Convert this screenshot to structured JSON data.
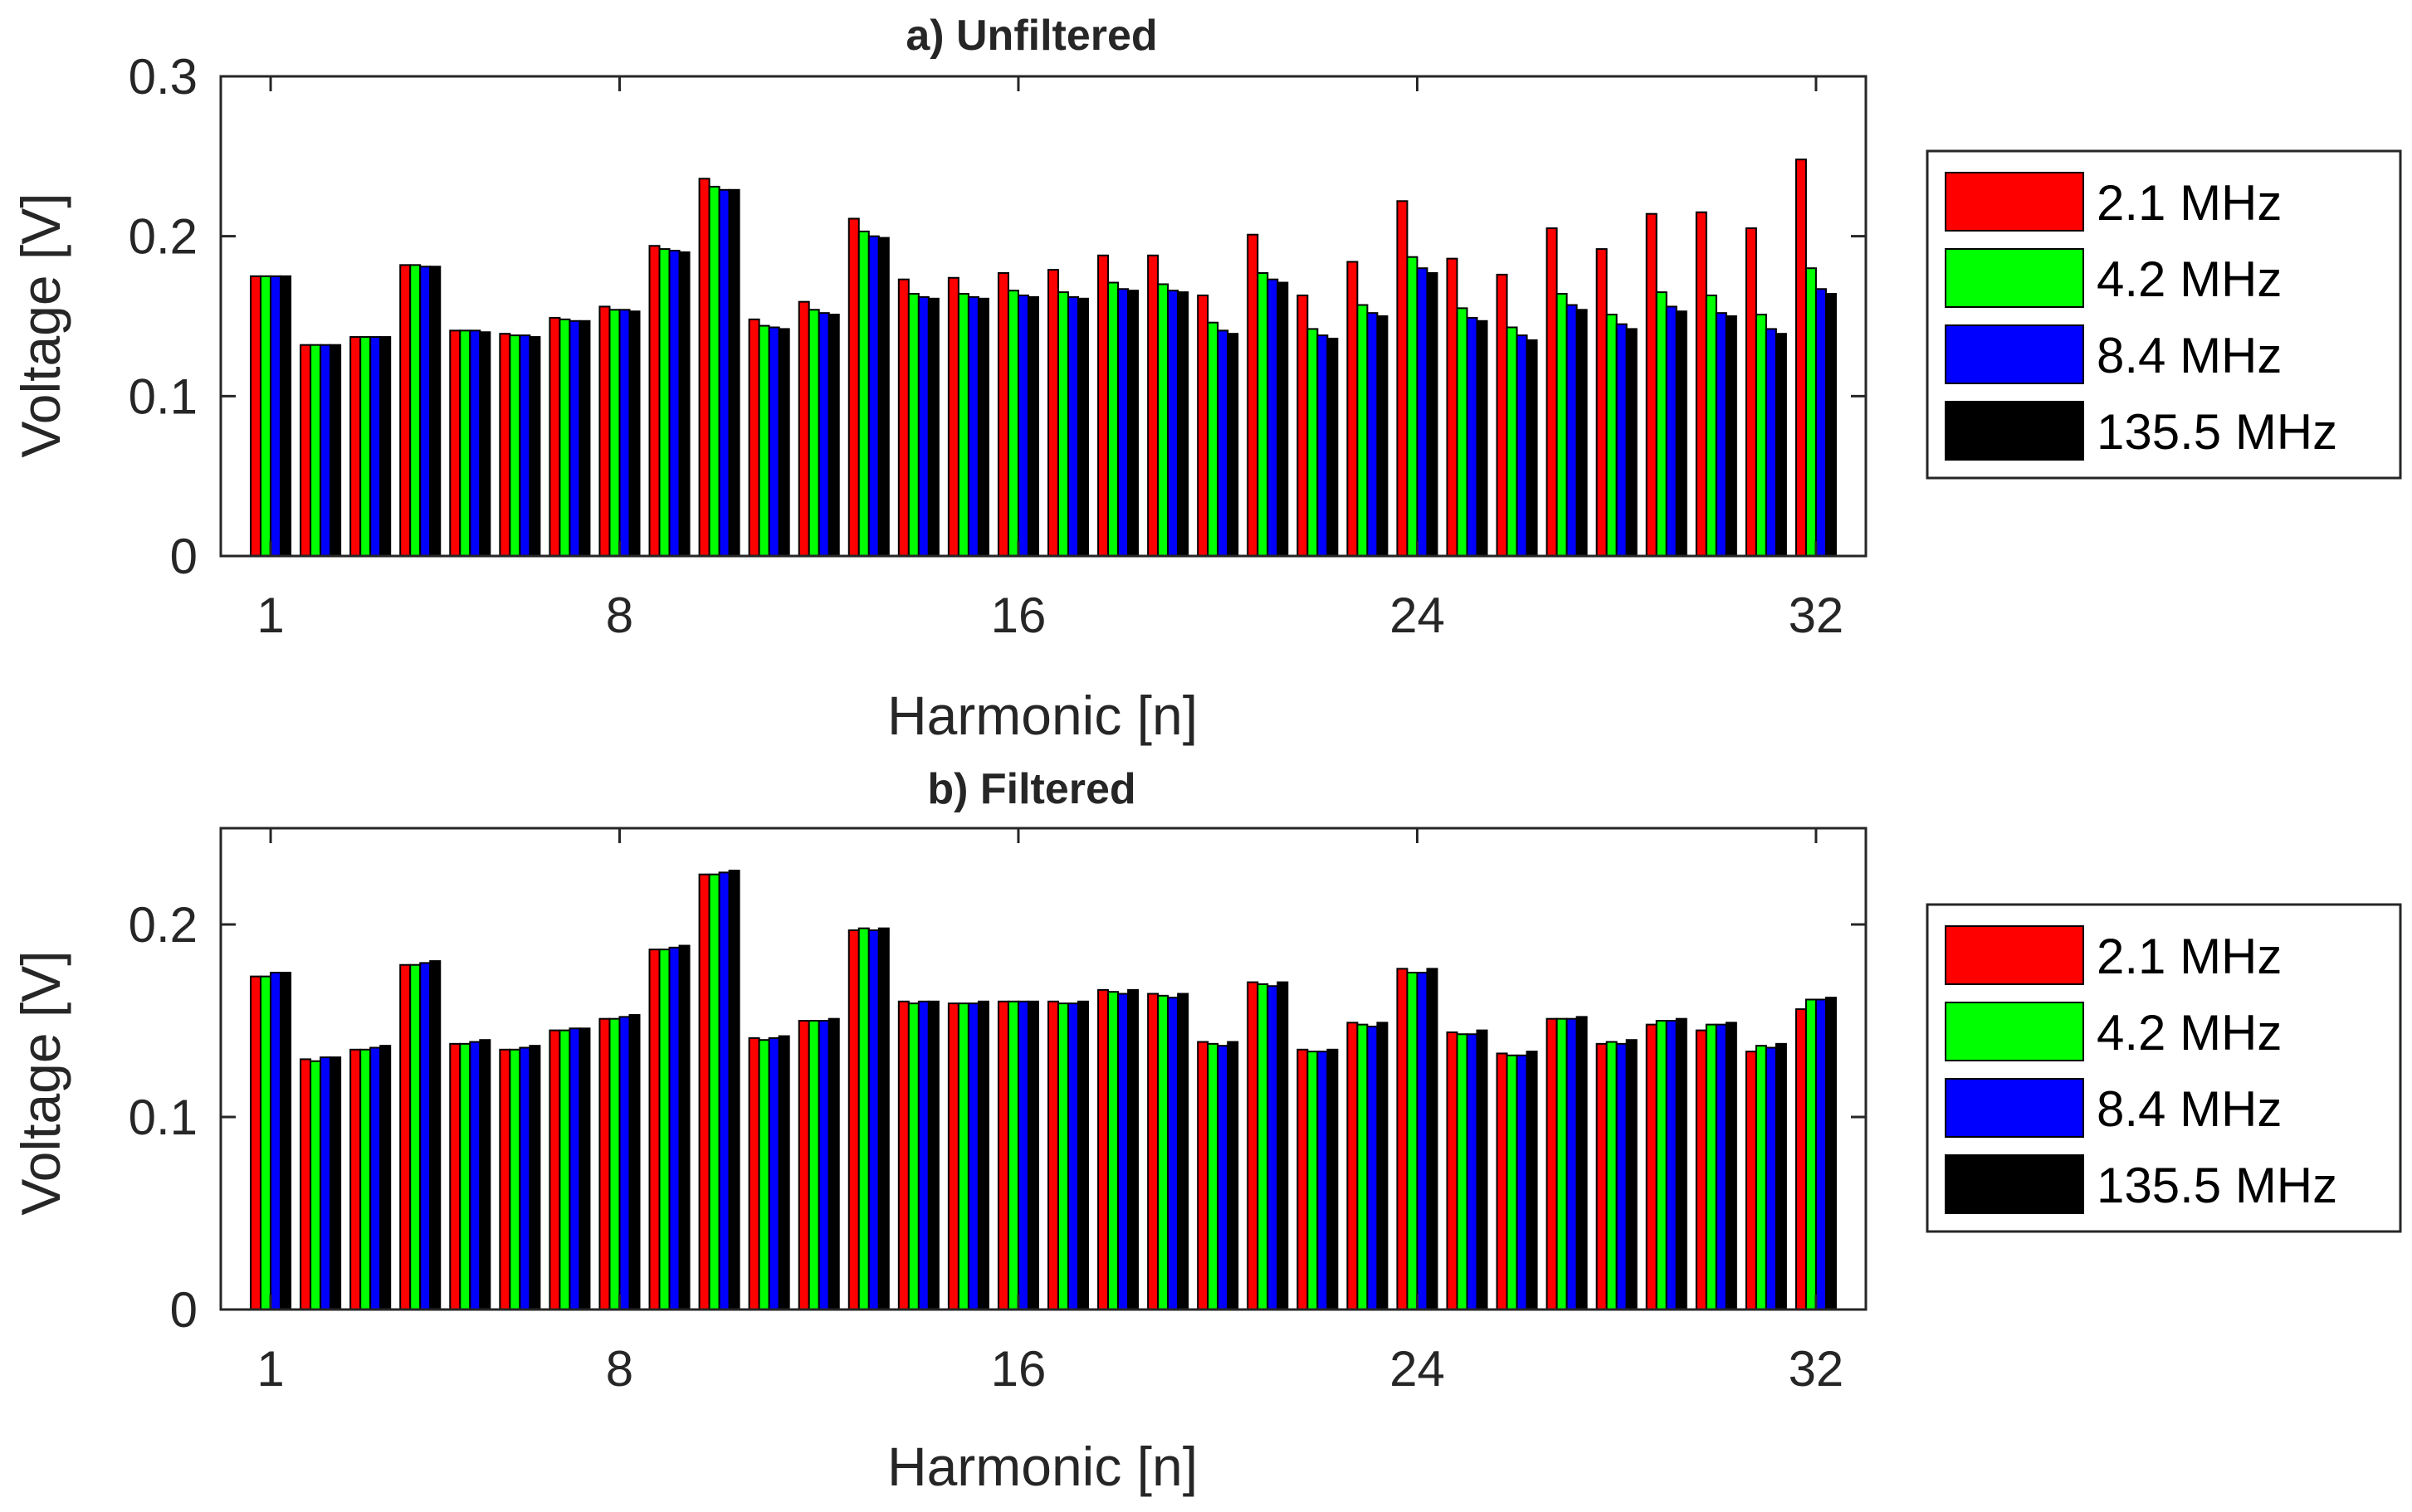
{
  "chart_data": [
    {
      "type": "bar",
      "title": "a) Unfiltered",
      "xlabel": "Harmonic [n]",
      "ylabel": "Voltage [V]",
      "xlim": [
        0,
        33
      ],
      "ylim": [
        0,
        0.3
      ],
      "xticks": [
        1,
        8,
        16,
        24,
        32
      ],
      "xtick_labels": [
        "1",
        "8",
        "16",
        "24",
        "32"
      ],
      "yticks": [
        0,
        0.1,
        0.2,
        0.3
      ],
      "ytick_labels": [
        "0",
        "0.1",
        "0.2",
        "0.3"
      ],
      "legend_position": "outside-right",
      "categories": [
        1,
        2,
        3,
        4,
        5,
        6,
        7,
        8,
        9,
        10,
        11,
        12,
        13,
        14,
        15,
        16,
        17,
        18,
        19,
        20,
        21,
        22,
        23,
        24,
        25,
        26,
        27,
        28,
        29,
        30,
        31,
        32
      ],
      "series": [
        {
          "name": "2.1 MHz",
          "color": "#ff0000",
          "values": [
            0.175,
            0.132,
            0.137,
            0.182,
            0.141,
            0.139,
            0.149,
            0.156,
            0.194,
            0.236,
            0.148,
            0.159,
            0.211,
            0.173,
            0.174,
            0.177,
            0.179,
            0.188,
            0.188,
            0.163,
            0.201,
            0.163,
            0.184,
            0.222,
            0.186,
            0.176,
            0.205,
            0.192,
            0.214,
            0.215,
            0.205,
            0.248
          ]
        },
        {
          "name": "4.2 MHz",
          "color": "#00ff00",
          "values": [
            0.175,
            0.132,
            0.137,
            0.182,
            0.141,
            0.138,
            0.148,
            0.154,
            0.192,
            0.231,
            0.144,
            0.154,
            0.203,
            0.164,
            0.164,
            0.166,
            0.165,
            0.171,
            0.17,
            0.146,
            0.177,
            0.142,
            0.157,
            0.187,
            0.155,
            0.143,
            0.164,
            0.151,
            0.165,
            0.163,
            0.151,
            0.18
          ]
        },
        {
          "name": "8.4 MHz",
          "color": "#0000ff",
          "values": [
            0.175,
            0.132,
            0.137,
            0.181,
            0.141,
            0.138,
            0.147,
            0.154,
            0.191,
            0.229,
            0.143,
            0.152,
            0.2,
            0.162,
            0.162,
            0.163,
            0.162,
            0.167,
            0.166,
            0.141,
            0.173,
            0.138,
            0.152,
            0.18,
            0.149,
            0.138,
            0.157,
            0.145,
            0.156,
            0.152,
            0.142,
            0.167
          ]
        },
        {
          "name": "135.5 MHz",
          "color": "#000000",
          "values": [
            0.175,
            0.132,
            0.137,
            0.181,
            0.14,
            0.137,
            0.147,
            0.153,
            0.19,
            0.229,
            0.142,
            0.151,
            0.199,
            0.161,
            0.161,
            0.162,
            0.161,
            0.166,
            0.165,
            0.139,
            0.171,
            0.136,
            0.15,
            0.177,
            0.147,
            0.135,
            0.154,
            0.142,
            0.153,
            0.15,
            0.139,
            0.164
          ]
        }
      ]
    },
    {
      "type": "bar",
      "title": "b) Filtered",
      "xlabel": "Harmonic [n]",
      "ylabel": "Voltage [V]",
      "xlim": [
        0,
        33
      ],
      "ylim": [
        0,
        0.25
      ],
      "xticks": [
        1,
        8,
        16,
        24,
        32
      ],
      "xtick_labels": [
        "1",
        "8",
        "16",
        "24",
        "32"
      ],
      "yticks": [
        0,
        0.1,
        0.2
      ],
      "ytick_labels": [
        "0",
        "0.1",
        "0.2"
      ],
      "legend_position": "outside-right",
      "categories": [
        1,
        2,
        3,
        4,
        5,
        6,
        7,
        8,
        9,
        10,
        11,
        12,
        13,
        14,
        15,
        16,
        17,
        18,
        19,
        20,
        21,
        22,
        23,
        24,
        25,
        26,
        27,
        28,
        29,
        30,
        31,
        32
      ],
      "series": [
        {
          "name": "2.1 MHz",
          "color": "#ff0000",
          "values": [
            0.173,
            0.13,
            0.135,
            0.179,
            0.138,
            0.135,
            0.145,
            0.151,
            0.187,
            0.226,
            0.141,
            0.15,
            0.197,
            0.16,
            0.159,
            0.16,
            0.16,
            0.166,
            0.164,
            0.139,
            0.17,
            0.135,
            0.149,
            0.177,
            0.144,
            0.133,
            0.151,
            0.138,
            0.148,
            0.145,
            0.134,
            0.156
          ]
        },
        {
          "name": "4.2 MHz",
          "color": "#00ff00",
          "values": [
            0.173,
            0.129,
            0.135,
            0.179,
            0.138,
            0.135,
            0.145,
            0.151,
            0.187,
            0.226,
            0.14,
            0.15,
            0.198,
            0.159,
            0.159,
            0.16,
            0.159,
            0.165,
            0.163,
            0.138,
            0.169,
            0.134,
            0.148,
            0.175,
            0.143,
            0.132,
            0.151,
            0.139,
            0.15,
            0.148,
            0.137,
            0.161
          ]
        },
        {
          "name": "8.4 MHz",
          "color": "#0000ff",
          "values": [
            0.175,
            0.131,
            0.136,
            0.18,
            0.139,
            0.136,
            0.146,
            0.152,
            0.188,
            0.227,
            0.141,
            0.15,
            0.197,
            0.16,
            0.159,
            0.16,
            0.159,
            0.164,
            0.162,
            0.137,
            0.168,
            0.134,
            0.147,
            0.175,
            0.143,
            0.132,
            0.151,
            0.138,
            0.15,
            0.148,
            0.136,
            0.161
          ]
        },
        {
          "name": "135.5 MHz",
          "color": "#000000",
          "values": [
            0.175,
            0.131,
            0.137,
            0.181,
            0.14,
            0.137,
            0.146,
            0.153,
            0.189,
            0.228,
            0.142,
            0.151,
            0.198,
            0.16,
            0.16,
            0.16,
            0.16,
            0.166,
            0.164,
            0.139,
            0.17,
            0.135,
            0.149,
            0.177,
            0.145,
            0.134,
            0.152,
            0.14,
            0.151,
            0.149,
            0.138,
            0.162
          ]
        }
      ]
    }
  ]
}
